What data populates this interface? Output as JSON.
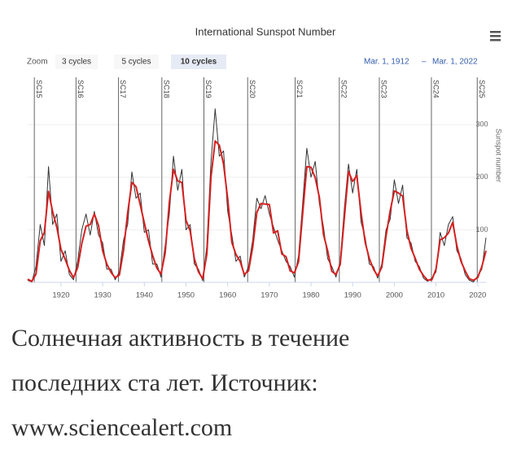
{
  "chart_data": {
    "type": "line",
    "title": "International Sunspot Number",
    "y_axis_label": "Sunspot number",
    "xlim": [
      1912,
      2022
    ],
    "xticks": [
      1920,
      1930,
      1940,
      1950,
      1960,
      1970,
      1980,
      1990,
      2000,
      2010,
      2020
    ],
    "ylim": [
      0,
      390
    ],
    "yticks": [
      100,
      200,
      300
    ],
    "cycles": [
      {
        "label": "SC15",
        "x": 1913.6
      },
      {
        "label": "SC16",
        "x": 1923.6
      },
      {
        "label": "SC17",
        "x": 1933.8
      },
      {
        "label": "SC18",
        "x": 1944.2
      },
      {
        "label": "SC19",
        "x": 1954.3
      },
      {
        "label": "SC20",
        "x": 1964.8
      },
      {
        "label": "SC21",
        "x": 1976.2
      },
      {
        "label": "SC22",
        "x": 1986.8
      },
      {
        "label": "SC23",
        "x": 1996.4
      },
      {
        "label": "SC24",
        "x": 2008.9
      },
      {
        "label": "SC25",
        "x": 2019.9
      }
    ],
    "x": [
      1912,
      1913,
      1914,
      1915,
      1916,
      1917,
      1918,
      1919,
      1920,
      1921,
      1922,
      1923,
      1924,
      1925,
      1926,
      1927,
      1928,
      1929,
      1930,
      1931,
      1932,
      1933,
      1934,
      1935,
      1936,
      1937,
      1938,
      1939,
      1940,
      1941,
      1942,
      1943,
      1944,
      1945,
      1946,
      1947,
      1948,
      1949,
      1950,
      1951,
      1952,
      1953,
      1954,
      1955,
      1956,
      1957,
      1958,
      1959,
      1960,
      1961,
      1962,
      1963,
      1964,
      1965,
      1966,
      1967,
      1968,
      1969,
      1970,
      1971,
      1972,
      1973,
      1974,
      1975,
      1976,
      1977,
      1978,
      1979,
      1980,
      1981,
      1982,
      1983,
      1984,
      1985,
      1986,
      1987,
      1988,
      1989,
      1990,
      1991,
      1992,
      1993,
      1994,
      1995,
      1996,
      1997,
      1998,
      1999,
      2000,
      2001,
      2002,
      2003,
      2004,
      2005,
      2006,
      2007,
      2008,
      2009,
      2010,
      2011,
      2012,
      2013,
      2014,
      2015,
      2016,
      2017,
      2018,
      2019,
      2020,
      2021,
      2022
    ],
    "series": [
      {
        "color": "#333333",
        "values": [
          4,
          1,
          30,
          110,
          70,
          220,
          110,
          130,
          40,
          60,
          15,
          5,
          40,
          100,
          130,
          90,
          135,
          90,
          75,
          25,
          25,
          5,
          20,
          80,
          110,
          210,
          160,
          170,
          95,
          100,
          35,
          35,
          10,
          70,
          130,
          240,
          175,
          215,
          100,
          110,
          35,
          25,
          3,
          70,
          230,
          330,
          240,
          250,
          135,
          90,
          40,
          50,
          10,
          30,
          80,
          160,
          140,
          165,
          130,
          105,
          80,
          60,
          40,
          30,
          10,
          50,
          150,
          255,
          200,
          230,
          150,
          105,
          45,
          30,
          10,
          40,
          140,
          225,
          170,
          215,
          115,
          85,
          35,
          30,
          8,
          35,
          100,
          120,
          195,
          150,
          185,
          85,
          75,
          40,
          30,
          8,
          2,
          8,
          20,
          95,
          70,
          110,
          125,
          60,
          45,
          15,
          4,
          1,
          12,
          25,
          85
        ]
      },
      {
        "color": "#d62020",
        "values": [
          6,
          2,
          16,
          79,
          95,
          173,
          134,
          105,
          63,
          44,
          23,
          9,
          28,
          74,
          107,
          110,
          130,
          108,
          60,
          35,
          19,
          9,
          14,
          60,
          132,
          190,
          182,
          148,
          113,
          79,
          51,
          27,
          16,
          56,
          152,
          215,
          193,
          190,
          118,
          98,
          45,
          20,
          7,
          54,
          201,
          269,
          261,
          225,
          159,
          76,
          53,
          40,
          15,
          22,
          67,
          133,
          150,
          149,
          148,
          94,
          98,
          54,
          49,
          22,
          18,
          39,
          131,
          220,
          219,
          199,
          162,
          91,
          60,
          21,
          15,
          34,
          123,
          211,
          192,
          203,
          133,
          76,
          45,
          25,
          12,
          29,
          88,
          136,
          174,
          170,
          164,
          99,
          65,
          46,
          25,
          13,
          4,
          5,
          25,
          81,
          85,
          94,
          114,
          70,
          40,
          22,
          7,
          4,
          9,
          30,
          60
        ]
      }
    ]
  },
  "toolbar": {
    "zoom_label": "Zoom",
    "buttons": [
      "3 cycles",
      "5 cycles",
      "10 cycles"
    ],
    "selected": 2,
    "range_from": "Mar. 1, 1912",
    "range_sep": "–",
    "range_to": "Mar. 1, 2022"
  },
  "caption": {
    "lines": [
      "Солнечная активность в течение",
      "последних ста лет. Источник:",
      "www.sciencealert.com"
    ]
  }
}
